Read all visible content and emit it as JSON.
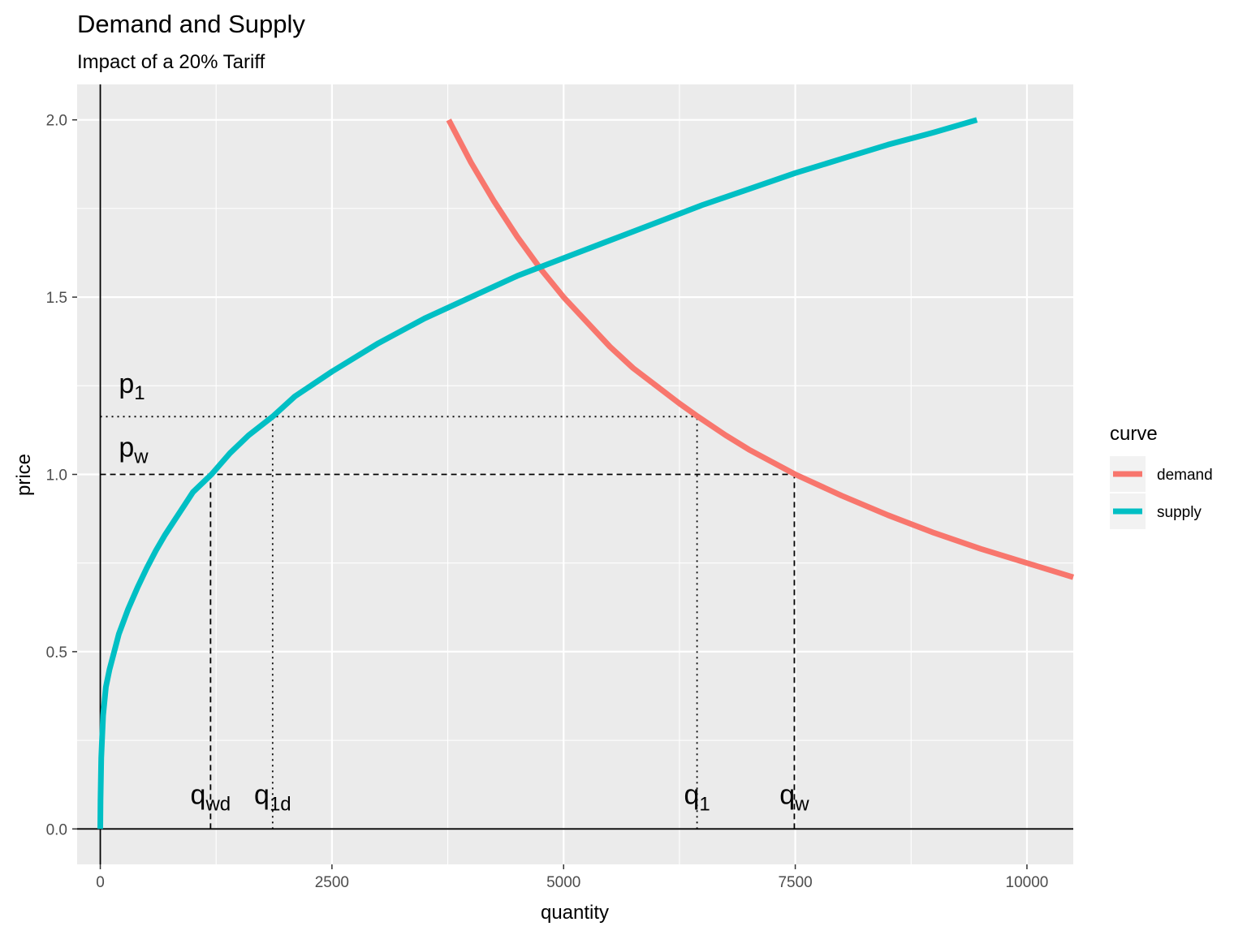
{
  "chart_data": {
    "type": "line",
    "title": "Demand and Supply",
    "subtitle": "Impact of a 20% Tariff",
    "xlabel": "quantity",
    "ylabel": "price",
    "xlim": [
      -250,
      10500
    ],
    "ylim": [
      -0.1,
      2.1
    ],
    "x_ticks": [
      0,
      2500,
      5000,
      7500,
      10000
    ],
    "x_tick_labels": [
      "0",
      "2500",
      "5000",
      "7500",
      "10000"
    ],
    "y_ticks": [
      0.0,
      0.5,
      1.0,
      1.5,
      2.0
    ],
    "y_tick_labels": [
      "0.0",
      "0.5",
      "1.0",
      "1.5",
      "2.0"
    ],
    "grid": true,
    "legend": {
      "title": "curve",
      "placement": "right",
      "entries": [
        {
          "label": "demand",
          "color": "#F8766D"
        },
        {
          "label": "supply",
          "color": "#00BFC4"
        }
      ]
    },
    "series": [
      {
        "name": "demand",
        "color": "#F8766D",
        "x": [
          3760,
          4000,
          4250,
          4500,
          4750,
          5000,
          5250,
          5500,
          5750,
          6000,
          6250,
          6450,
          6750,
          7000,
          7250,
          7500,
          8000,
          8500,
          9000,
          9500,
          10000,
          10500
        ],
        "y": [
          2.0,
          1.88,
          1.77,
          1.67,
          1.58,
          1.5,
          1.43,
          1.36,
          1.3,
          1.25,
          1.2,
          1.163,
          1.11,
          1.07,
          1.035,
          1.0,
          0.94,
          0.885,
          0.835,
          0.79,
          0.75,
          0.71
        ]
      },
      {
        "name": "supply",
        "color": "#00BFC4",
        "x": [
          0,
          2,
          10,
          30,
          60,
          100,
          150,
          200,
          300,
          400,
          500,
          600,
          700,
          800,
          900,
          1000,
          1200,
          1400,
          1600,
          1860,
          2100,
          2500,
          3000,
          3500,
          4000,
          4500,
          5000,
          5500,
          6000,
          6500,
          7000,
          7500,
          8000,
          8500,
          9000,
          9460
        ],
        "y": [
          0.0,
          0.08,
          0.2,
          0.32,
          0.4,
          0.45,
          0.5,
          0.55,
          0.62,
          0.68,
          0.735,
          0.785,
          0.83,
          0.87,
          0.91,
          0.95,
          1.0,
          1.06,
          1.11,
          1.163,
          1.22,
          1.29,
          1.37,
          1.44,
          1.5,
          1.56,
          1.61,
          1.66,
          1.71,
          1.76,
          1.805,
          1.85,
          1.89,
          1.93,
          1.965,
          2.0
        ]
      }
    ],
    "reference_lines": {
      "p_w": 1.0,
      "p_1": 1.163,
      "q_wd": 1190,
      "q_1d": 1860,
      "q_1": 6440,
      "q_w": 7490
    },
    "annotations": [
      {
        "base": "p",
        "sub": "1",
        "x": 200,
        "y": 1.23
      },
      {
        "base": "p",
        "sub": "w",
        "x": 200,
        "y": 1.05
      },
      {
        "base": "q",
        "sub": "wd",
        "x": 1190,
        "y": 0.07
      },
      {
        "base": "q",
        "sub": "1d",
        "x": 1860,
        "y": 0.07
      },
      {
        "base": "q",
        "sub": "1",
        "x": 6440,
        "y": 0.07
      },
      {
        "base": "q",
        "sub": "w",
        "x": 7490,
        "y": 0.07
      }
    ]
  }
}
